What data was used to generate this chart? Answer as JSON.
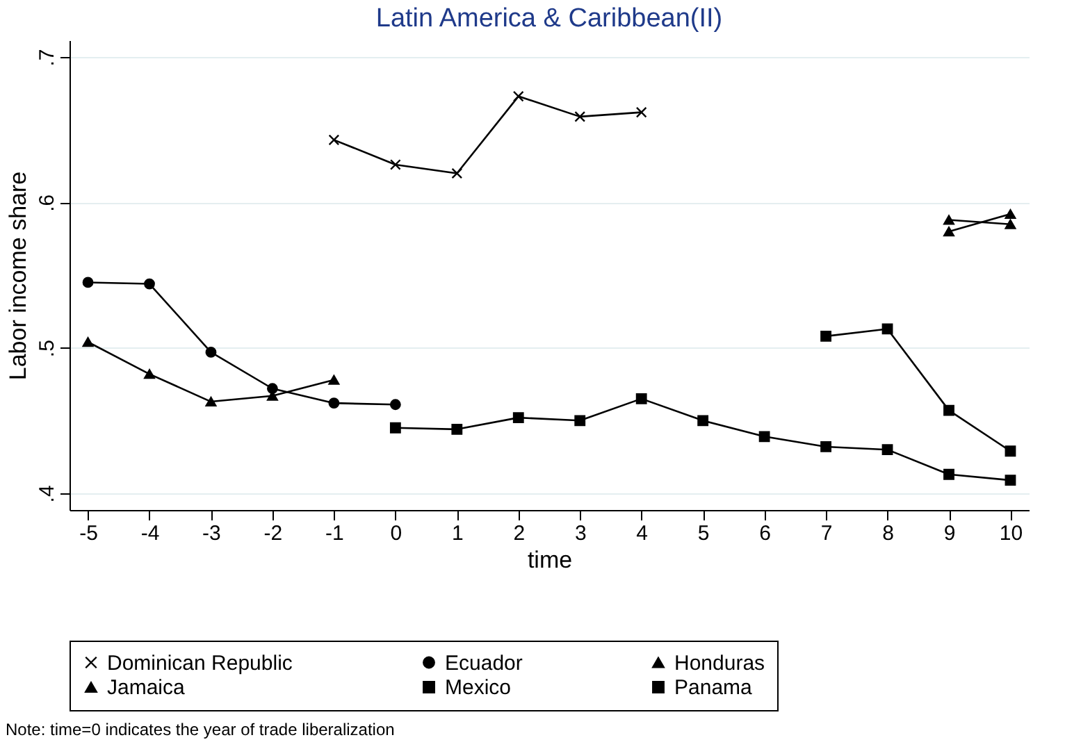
{
  "chart_data": {
    "type": "line",
    "title": "Latin America & Caribbean(II)",
    "xlabel": "time",
    "ylabel": "Labor income share",
    "x": [
      -5,
      -4,
      -3,
      -2,
      -1,
      0,
      1,
      2,
      3,
      4,
      5,
      6,
      7,
      8,
      9,
      10
    ],
    "series": [
      {
        "name": "Dominican Republic",
        "color": "#000000",
        "marker": "cross",
        "values": [
          null,
          null,
          null,
          null,
          0.643,
          0.626,
          0.62,
          0.673,
          0.659,
          0.662,
          null,
          null,
          null,
          null,
          null,
          null
        ]
      },
      {
        "name": "Ecuador",
        "color": "#000000",
        "marker": "circle",
        "values": [
          0.545,
          0.544,
          0.497,
          0.472,
          0.462,
          0.461,
          null,
          null,
          null,
          null,
          null,
          null,
          null,
          null,
          null,
          null
        ]
      },
      {
        "name": "Honduras",
        "color": "#000000",
        "marker": "triangle",
        "values": [
          null,
          null,
          null,
          null,
          null,
          null,
          null,
          null,
          null,
          null,
          null,
          null,
          null,
          null,
          0.58,
          0.592
        ]
      },
      {
        "name": "Jamaica",
        "color": "#000000",
        "marker": "triangle",
        "values": [
          0.504,
          0.482,
          0.463,
          0.467,
          0.478,
          null,
          null,
          null,
          null,
          null,
          null,
          null,
          null,
          null,
          0.588,
          0.585
        ]
      },
      {
        "name": "Mexico",
        "color": "#000000",
        "marker": "square",
        "values": [
          null,
          null,
          null,
          null,
          null,
          null,
          null,
          null,
          null,
          null,
          null,
          null,
          0.508,
          0.513,
          0.457,
          0.429
        ]
      },
      {
        "name": "Panama",
        "color": "#000000",
        "marker": "square",
        "values": [
          null,
          null,
          null,
          null,
          null,
          0.445,
          0.444,
          0.452,
          0.45,
          0.465,
          0.45,
          0.439,
          0.432,
          0.43,
          0.413,
          0.409
        ]
      }
    ],
    "xlim": [
      -5.3,
      10.3
    ],
    "xticks": [
      -5,
      -4,
      -3,
      -2,
      -1,
      0,
      1,
      2,
      3,
      4,
      5,
      6,
      7,
      8,
      9,
      10
    ],
    "ylim": [
      0.3885,
      0.7115
    ],
    "yticks": [
      {
        "value": 0.4,
        "label": ".4"
      },
      {
        "value": 0.5,
        "label": ".5"
      },
      {
        "value": 0.6,
        "label": ".6"
      },
      {
        "value": 0.7,
        "label": ".7"
      }
    ],
    "grid": "y",
    "legend": "bottom",
    "line_style": "solid",
    "annotations": [
      "Note: time=0 indicates the year of trade liberalization"
    ]
  }
}
